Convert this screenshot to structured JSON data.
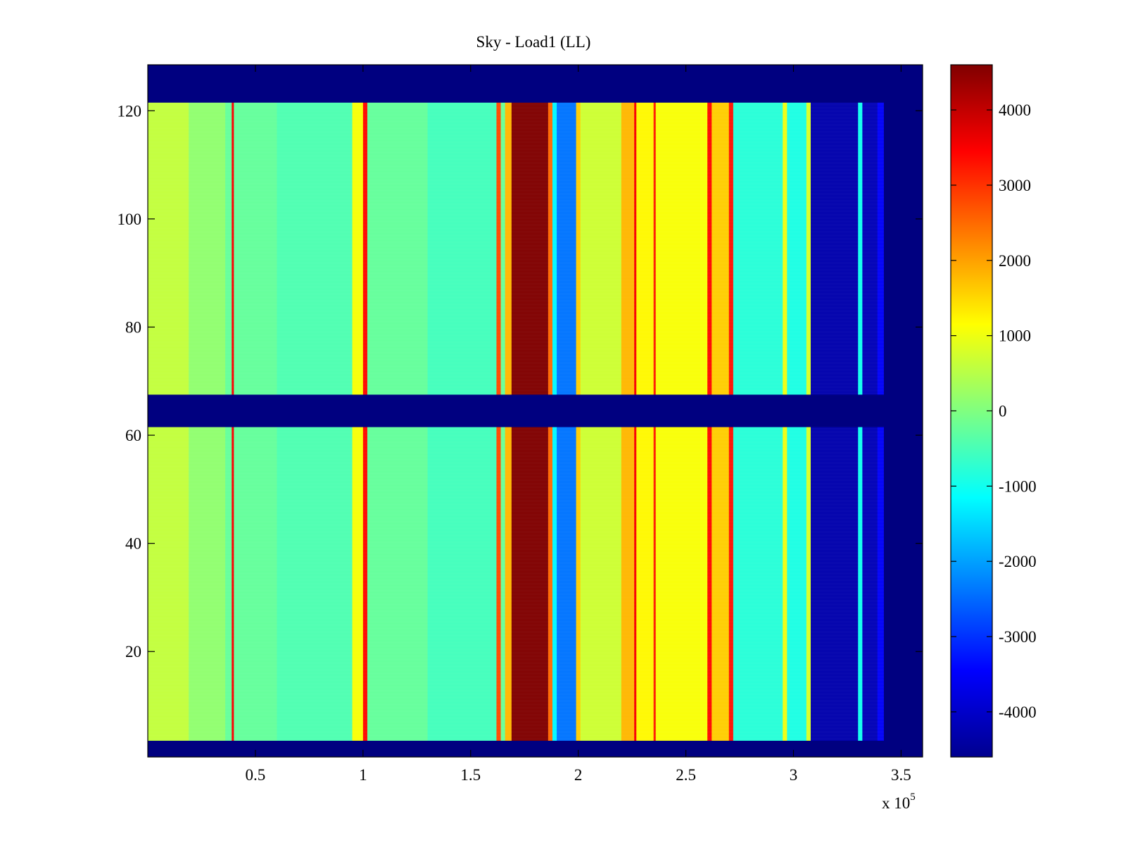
{
  "chart_data": {
    "type": "heatmap",
    "title": "Sky - Load1 (LL)",
    "xlabel": "",
    "ylabel": "",
    "x_exponent_label": "x 10",
    "x_exponent_power": "5",
    "xlim": [
      0,
      3.6
    ],
    "ylim": [
      0.5,
      128.5
    ],
    "x_ticks": [
      0.5,
      1,
      1.5,
      2,
      2.5,
      3,
      3.5
    ],
    "x_tick_labels": [
      "0.5",
      "1",
      "1.5",
      "2",
      "2.5",
      "3",
      "3.5"
    ],
    "y_ticks": [
      20,
      40,
      60,
      80,
      100,
      120
    ],
    "y_tick_labels": [
      "20",
      "40",
      "60",
      "80",
      "100",
      "120"
    ],
    "colorbar": {
      "colormap": "jet",
      "clim": [
        -4600,
        4600
      ],
      "ticks": [
        4000,
        3000,
        2000,
        1000,
        0,
        -1000,
        -2000,
        -3000,
        -4000
      ],
      "tick_labels": [
        "4000",
        "3000",
        "2000",
        "1000",
        "0",
        "-1000",
        "-2000",
        "-3000",
        "-4000"
      ]
    },
    "masked_row_ranges": [
      [
        0.5,
        3.5
      ],
      [
        61.5,
        67.5
      ],
      [
        121.5,
        128.5
      ]
    ],
    "masked_x_ranges": [
      [
        3.42,
        3.6
      ]
    ],
    "column_profile": [
      {
        "x_start": 0.0,
        "x_end": 0.19,
        "value": 600
      },
      {
        "x_start": 0.19,
        "x_end": 0.36,
        "value": 150
      },
      {
        "x_start": 0.36,
        "x_end": 0.39,
        "value": -250
      },
      {
        "x_start": 0.39,
        "x_end": 0.4,
        "value": 3500
      },
      {
        "x_start": 0.4,
        "x_end": 0.6,
        "value": -250
      },
      {
        "x_start": 0.6,
        "x_end": 0.95,
        "value": -450
      },
      {
        "x_start": 0.95,
        "x_end": 1.0,
        "value": 1100
      },
      {
        "x_start": 1.0,
        "x_end": 1.02,
        "value": 3400
      },
      {
        "x_start": 1.02,
        "x_end": 1.3,
        "value": -250
      },
      {
        "x_start": 1.3,
        "x_end": 1.62,
        "value": -550
      },
      {
        "x_start": 1.62,
        "x_end": 1.64,
        "value": 2800
      },
      {
        "x_start": 1.64,
        "x_end": 1.66,
        "value": -200
      },
      {
        "x_start": 1.66,
        "x_end": 1.69,
        "value": 1800
      },
      {
        "x_start": 1.69,
        "x_end": 1.86,
        "value": 4600
      },
      {
        "x_start": 1.86,
        "x_end": 1.88,
        "value": 2500
      },
      {
        "x_start": 1.88,
        "x_end": 1.9,
        "value": -1200
      },
      {
        "x_start": 1.9,
        "x_end": 1.99,
        "value": -2400
      },
      {
        "x_start": 1.99,
        "x_end": 2.01,
        "value": 1600
      },
      {
        "x_start": 2.01,
        "x_end": 2.2,
        "value": 700
      },
      {
        "x_start": 2.2,
        "x_end": 2.26,
        "value": 1800
      },
      {
        "x_start": 2.26,
        "x_end": 2.27,
        "value": 3500
      },
      {
        "x_start": 2.27,
        "x_end": 2.35,
        "value": 1200
      },
      {
        "x_start": 2.35,
        "x_end": 2.36,
        "value": 3200
      },
      {
        "x_start": 2.36,
        "x_end": 2.6,
        "value": 1100
      },
      {
        "x_start": 2.6,
        "x_end": 2.62,
        "value": 3400
      },
      {
        "x_start": 2.62,
        "x_end": 2.7,
        "value": 1600
      },
      {
        "x_start": 2.7,
        "x_end": 2.72,
        "value": 3300
      },
      {
        "x_start": 2.72,
        "x_end": 2.95,
        "value": -800
      },
      {
        "x_start": 2.95,
        "x_end": 2.97,
        "value": 1000
      },
      {
        "x_start": 2.97,
        "x_end": 3.06,
        "value": -900
      },
      {
        "x_start": 3.06,
        "x_end": 3.08,
        "value": 800
      },
      {
        "x_start": 3.08,
        "x_end": 3.3,
        "value": -4200
      },
      {
        "x_start": 3.3,
        "x_end": 3.32,
        "value": -1000
      },
      {
        "x_start": 3.32,
        "x_end": 3.39,
        "value": -4100
      },
      {
        "x_start": 3.39,
        "x_end": 3.42,
        "value": -3500
      }
    ]
  }
}
